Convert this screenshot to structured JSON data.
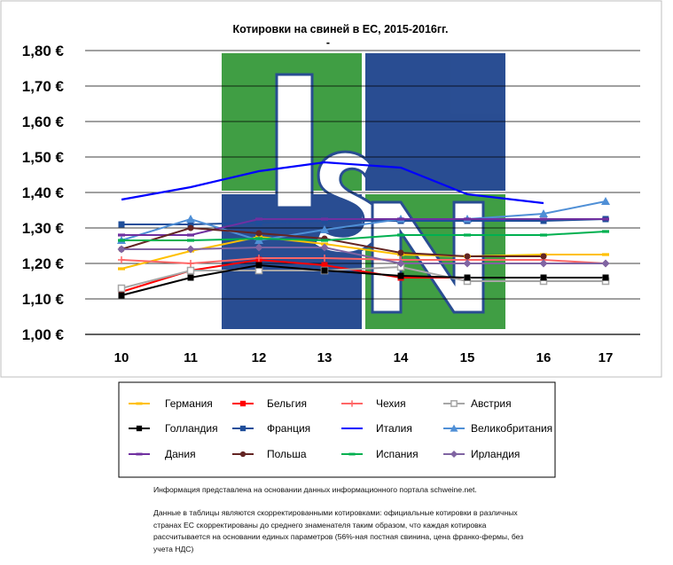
{
  "chart_data": {
    "type": "line",
    "title": "Котировки на свиней в ЕС, 2015-2016гг.",
    "subtitle": "-",
    "x": [
      "10",
      "11",
      "12",
      "13",
      "14",
      "15",
      "16",
      "17"
    ],
    "y_ticks": [
      "1,00 €",
      "1,10 €",
      "1,20 €",
      "1,30 €",
      "1,40 €",
      "1,50 €",
      "1,60 €",
      "1,70 €",
      "1,80 €"
    ],
    "ylim": [
      1.0,
      1.8
    ],
    "grid": true,
    "legend_position": "bottom",
    "series": [
      {
        "name": "Германия",
        "color": "#FFC000",
        "marker": "dash",
        "values": [
          1.185,
          1.235,
          1.275,
          1.255,
          1.225,
          1.22,
          1.225,
          1.225
        ]
      },
      {
        "name": "Бельгия",
        "color": "#FF0000",
        "marker": "square",
        "values": [
          1.12,
          1.18,
          1.21,
          1.195,
          1.16,
          1.16,
          1.16,
          1.16
        ]
      },
      {
        "name": "Чехия",
        "color": "#FF6666",
        "marker": "plus",
        "values": [
          1.21,
          1.2,
          1.215,
          1.215,
          1.21,
          1.21,
          1.21,
          1.2
        ]
      },
      {
        "name": "Австрия",
        "color": "#A6A6A6",
        "marker": "square-open",
        "values": [
          1.13,
          1.18,
          1.18,
          1.18,
          1.19,
          1.15,
          1.15,
          1.15
        ]
      },
      {
        "name": "Голландия",
        "color": "#000000",
        "marker": "square",
        "values": [
          1.11,
          1.16,
          1.195,
          1.18,
          1.165,
          1.16,
          1.16,
          1.16
        ]
      },
      {
        "name": "Франция",
        "color": "#1F4E9A",
        "marker": "square",
        "values": [
          1.31,
          1.31,
          1.315,
          1.32,
          1.32,
          1.32,
          1.32,
          1.325
        ]
      },
      {
        "name": "Италия",
        "color": "#0000FF",
        "marker": "none",
        "values": [
          1.38,
          1.415,
          1.46,
          1.485,
          1.47,
          1.395,
          1.37,
          null
        ]
      },
      {
        "name": "Великобритания",
        "color": "#4F8FD6",
        "marker": "triangle",
        "values": [
          1.265,
          1.325,
          1.265,
          1.295,
          1.325,
          1.325,
          1.34,
          1.375
        ]
      },
      {
        "name": "Дания",
        "color": "#7030A0",
        "marker": "dash",
        "values": [
          1.28,
          1.28,
          1.325,
          1.325,
          1.325,
          1.325,
          1.325,
          1.325
        ]
      },
      {
        "name": "Польша",
        "color": "#632523",
        "marker": "circle",
        "values": [
          1.24,
          1.3,
          1.285,
          1.27,
          1.23,
          1.22,
          1.22,
          null
        ]
      },
      {
        "name": "Испания",
        "color": "#00B050",
        "marker": "dash",
        "values": [
          1.265,
          1.265,
          1.27,
          1.265,
          1.28,
          1.28,
          1.28,
          1.29
        ]
      },
      {
        "name": "Ирландия",
        "color": "#8064A2",
        "marker": "diamond",
        "values": [
          1.24,
          1.24,
          1.245,
          1.245,
          1.2,
          1.2,
          1.2,
          1.2
        ]
      }
    ]
  },
  "legend_order": [
    [
      "Германия",
      "Бельгия",
      "Чехия",
      "Австрия"
    ],
    [
      "Голландия",
      "Франция",
      "Италия",
      "Великобритания"
    ],
    [
      "Дания",
      "Польша",
      "Испания",
      "Ирландия"
    ]
  ],
  "watermark": {
    "text": "ISN",
    "green": "#3A9B3E",
    "blue": "#23488F"
  },
  "notes": {
    "note1": "Информация представлена на основании данных информационного портала schweine.net.",
    "note2": "Данные в таблицы являются скорректированными котировками: официальные котировки в различных странах ЕС скорректированы до среднего знаменателя таким образом, что каждая котировка рассчитывается на основании единых параметров (56%-ная постная свинина, цена франко-фермы, без учета НДС)"
  }
}
